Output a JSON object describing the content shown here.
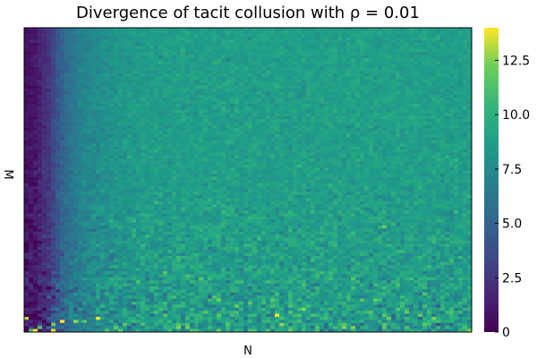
{
  "chart_data": {
    "type": "heatmap",
    "title": "Divergence of tacit collusion with ρ = 0.01",
    "xlabel": "N",
    "ylabel": "M",
    "colormap": "viridis",
    "colorbar": {
      "range": [
        0,
        14
      ],
      "ticks": [
        0,
        2.5,
        5.0,
        7.5,
        10.0,
        12.5
      ],
      "tick_labels": [
        "0",
        "2.5",
        "5.0",
        "7.5",
        "10.0",
        "12.5"
      ]
    },
    "grid": false,
    "z_description_plateau": 8.8,
    "rows": 100,
    "cols": 100,
    "column_profile": {
      "x_fraction": [
        0.0,
        0.02,
        0.05,
        0.08,
        0.12,
        0.18,
        0.25,
        0.35,
        1.0
      ],
      "mean_value": [
        0.8,
        1.0,
        2.5,
        5.0,
        7.0,
        8.0,
        8.5,
        8.8,
        8.8
      ]
    },
    "noise_std_by_row_fraction": {
      "row_fraction": [
        0.0,
        0.5,
        0.8,
        1.0
      ],
      "std": [
        0.4,
        0.5,
        0.9,
        1.6
      ]
    }
  }
}
